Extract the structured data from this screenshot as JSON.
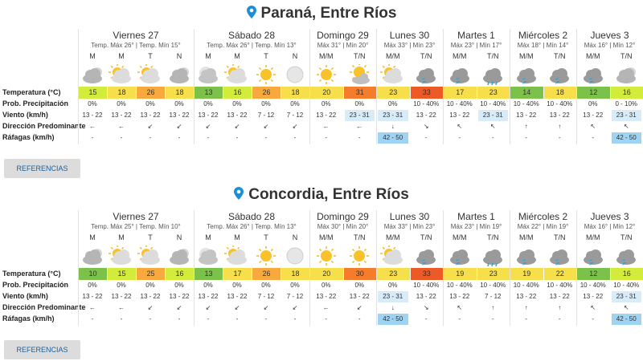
{
  "sections": [
    {
      "title": "Paraná, Entre Ríos",
      "days": [
        {
          "name": "Viernes 27",
          "summary": "Temp. Máx 26° | Temp. Mín 15°",
          "periods": [
            "M",
            "M",
            "T",
            "N"
          ]
        },
        {
          "name": "Sábado 28",
          "summary": "Temp. Máx 26° | Temp. Mín 13°",
          "periods": [
            "M",
            "M",
            "T",
            "N"
          ]
        },
        {
          "name": "Domingo 29",
          "summary": "Máx 31° | Mín 20°",
          "periods": [
            "M/M",
            "T/N"
          ]
        },
        {
          "name": "Lunes 30",
          "summary": "Máx 33° | Mín 23°",
          "periods": [
            "M/M",
            "T/N"
          ]
        },
        {
          "name": "Martes 1",
          "summary": "Máx 23° | Mín 17°",
          "periods": [
            "M/M",
            "T/N"
          ]
        },
        {
          "name": "Miércoles 2",
          "summary": "Máx 18° | Mín 14°",
          "periods": [
            "M/M",
            "T/N"
          ]
        },
        {
          "name": "Jueves 3",
          "summary": "Máx 16° | Mín 12°",
          "periods": [
            "M/M",
            "T/N"
          ]
        }
      ],
      "row_labels": [
        "Temperatura (°C)",
        "Prob. Precipitación",
        "Viento (km/h)",
        "Dirección Predominante",
        "Ráfagas (km/h)"
      ],
      "rows": [
        [
          "15",
          "18",
          "26",
          "18",
          "13",
          "16",
          "26",
          "18",
          "20",
          "31",
          "23",
          "33",
          "17",
          "23",
          "14",
          "18",
          "12",
          "16"
        ],
        [
          "0%",
          "0%",
          "0%",
          "0%",
          "0%",
          "0%",
          "0%",
          "0%",
          "0%",
          "0%",
          "0%",
          "10 - 40%",
          "10 - 40%",
          "10 - 40%",
          "10 - 40%",
          "10 - 40%",
          "0%",
          "0 - 10%"
        ],
        [
          "13 - 22",
          "13 - 22",
          "13 - 22",
          "13 - 22",
          "13 - 22",
          "13 - 22",
          "7 - 12",
          "7 - 12",
          "13 - 22",
          "23 - 31",
          "23 - 31",
          "13 - 22",
          "13 - 22",
          "23 - 31",
          "13 - 22",
          "13 - 22",
          "13 - 22",
          "23 - 31"
        ],
        [
          "←",
          "←",
          "↙",
          "↙",
          "↙",
          "↙",
          "↙",
          "↙",
          "←",
          "←",
          "↓",
          "↘",
          "↖",
          "↖",
          "↑",
          "↑",
          "↖",
          "↖"
        ],
        [
          "-",
          "-",
          "-",
          "-",
          "-",
          "-",
          "-",
          "-",
          "-",
          "-",
          "42 - 50",
          "-",
          "-",
          "-",
          "-",
          "-",
          "-",
          "42 - 50"
        ]
      ],
      "button": "REFERENCIAS"
    },
    {
      "title": "Concordia, Entre Ríos",
      "days": [
        {
          "name": "Viernes 27",
          "summary": "Temp. Máx 25° | Temp. Mín 10°",
          "periods": [
            "M",
            "M",
            "T",
            "N"
          ]
        },
        {
          "name": "Sábado 28",
          "summary": "Temp. Máx 26° | Temp. Mín 13°",
          "periods": [
            "M",
            "M",
            "T",
            "N"
          ]
        },
        {
          "name": "Domingo 29",
          "summary": "Máx 30° | Mín 20°",
          "periods": [
            "M/M",
            "T/N"
          ]
        },
        {
          "name": "Lunes 30",
          "summary": "Máx 33° | Mín 23°",
          "periods": [
            "M/M",
            "T/N"
          ]
        },
        {
          "name": "Martes 1",
          "summary": "Máx 23° | Mín 19°",
          "periods": [
            "M/M",
            "T/N"
          ]
        },
        {
          "name": "Miércoles 2",
          "summary": "Máx 22° | Mín 19°",
          "periods": [
            "M/M",
            "T/N"
          ]
        },
        {
          "name": "Jueves 3",
          "summary": "Máx 16° | Mín 12°",
          "periods": [
            "M/M",
            "T/N"
          ]
        }
      ],
      "row_labels": [
        "Temperatura (°C)",
        "Prob. Precipitación",
        "Viento (km/h)",
        "Dirección Predominante",
        "Ráfagas (km/h)"
      ],
      "rows": [
        [
          "10",
          "15",
          "25",
          "16",
          "13",
          "17",
          "26",
          "18",
          "20",
          "30",
          "23",
          "33",
          "19",
          "23",
          "19",
          "22",
          "12",
          "16"
        ],
        [
          "0%",
          "0%",
          "0%",
          "0%",
          "0%",
          "0%",
          "0%",
          "0%",
          "0%",
          "0%",
          "0%",
          "10 - 40%",
          "10 - 40%",
          "10 - 40%",
          "10 - 40%",
          "10 - 40%",
          "10 - 40%",
          "10 - 40%"
        ],
        [
          "13 - 22",
          "13 - 22",
          "13 - 22",
          "13 - 22",
          "13 - 22",
          "13 - 22",
          "7 - 12",
          "7 - 12",
          "13 - 22",
          "13 - 22",
          "23 - 31",
          "13 - 22",
          "13 - 22",
          "7 - 12",
          "13 - 22",
          "13 - 22",
          "13 - 22",
          "23 - 31"
        ],
        [
          "←",
          "←",
          "↙",
          "↙",
          "↙",
          "↙",
          "↙",
          "↙",
          "←",
          "↙",
          "↓",
          "↘",
          "↖",
          "↑",
          "↑",
          "↑",
          "↖",
          "↖"
        ],
        [
          "-",
          "-",
          "-",
          "-",
          "-",
          "-",
          "-",
          "-",
          "-",
          "-",
          "42 - 50",
          "-",
          "-",
          "-",
          "-",
          "-",
          "-",
          "42 - 50"
        ]
      ],
      "button": "REFERENCIAS"
    }
  ]
}
